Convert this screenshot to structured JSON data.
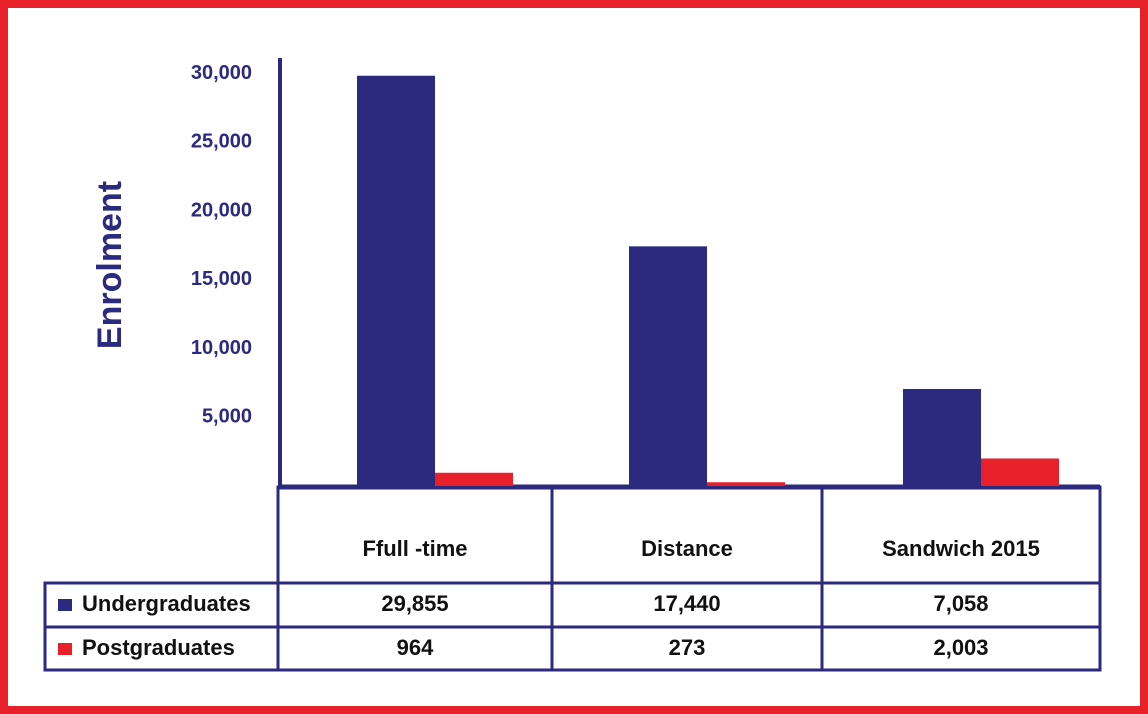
{
  "chart_data": {
    "type": "bar",
    "ylabel": "Enrolment",
    "categories": [
      "Ffull -time",
      "Distance",
      "Sandwich 2015"
    ],
    "series": [
      {
        "name": "Undergraduates",
        "color": "#2b2a7e",
        "values": [
          29855,
          17440,
          7058
        ],
        "value_labels": [
          "29,855",
          "17,440",
          "7,058"
        ]
      },
      {
        "name": "Postgraduates",
        "color": "#e8202a",
        "values": [
          964,
          273,
          2003
        ],
        "value_labels": [
          "964",
          "273",
          "2,003"
        ]
      }
    ],
    "ylim": [
      0,
      31000
    ],
    "yticks": [
      {
        "value": 5000,
        "label": "5,000"
      },
      {
        "value": 10000,
        "label": "10,000"
      },
      {
        "value": 15000,
        "label": "15,000"
      },
      {
        "value": 20000,
        "label": "20,000"
      },
      {
        "value": 25000,
        "label": "25,000"
      },
      {
        "value": 30000,
        "label": "30,000"
      }
    ],
    "grid": false
  }
}
